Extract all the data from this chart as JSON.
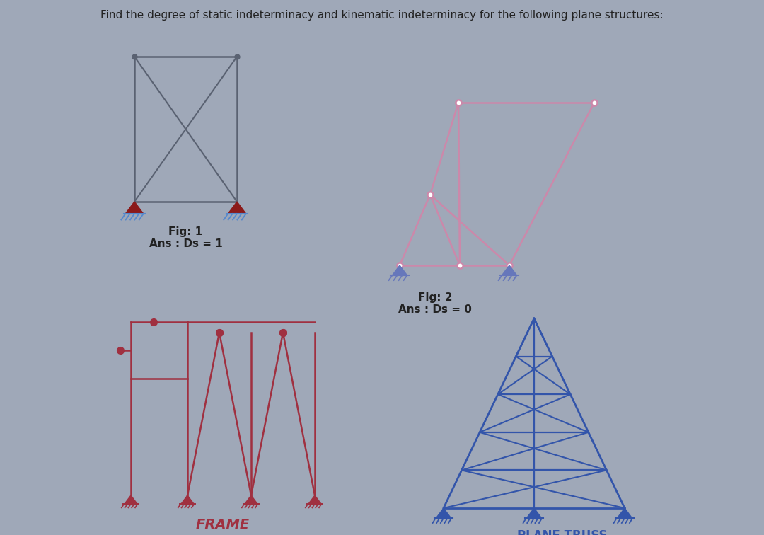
{
  "title": "Find the degree of static indeterminacy and kinematic indeterminacy for the following plane structures:",
  "bg_color": "#9fa8b8",
  "fig1_color": "#5a6272",
  "fig1_support_dark": "#8b1a1a",
  "fig1_support_light": "#5588cc",
  "fig2_color": "#cc88aa",
  "fig2_support_color": "#6677bb",
  "fig3_color": "#a03040",
  "fig4_color": "#3355aa",
  "label1": "Fig: 1",
  "ans1": "Ans : Ds = 1",
  "label2": "Fig: 2",
  "ans2": "Ans : Ds = 0",
  "label3": "FRAME",
  "label4": "PLANE TRUSS"
}
